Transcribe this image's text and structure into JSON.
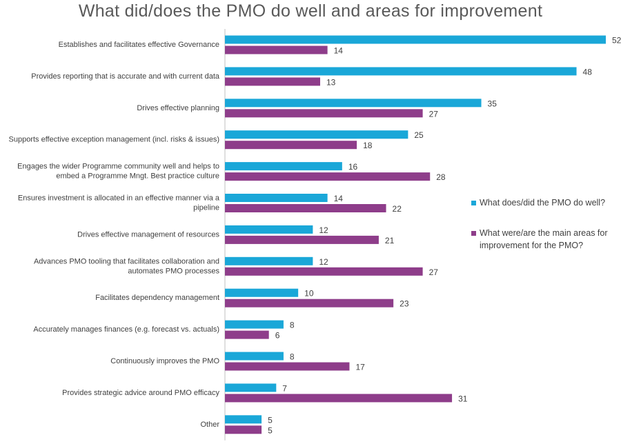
{
  "chart_data": {
    "type": "bar",
    "orientation": "horizontal",
    "title": "What did/does the PMO do well and areas for improvement",
    "categories": [
      "Establishes and facilitates effective Governance",
      "Provides reporting that is accurate and with current data",
      "Drives effective planning",
      "Supports effective exception management (incl. risks & issues)",
      "Engages the wider Programme community well and helps to embed a Programme Mngt. Best practice culture",
      "Ensures investment is allocated in an effective manner via a pipeline",
      "Drives effective management of resources",
      "Advances PMO tooling that facilitates collaboration and automates PMO processes",
      "Facilitates dependency management",
      "Accurately manages finances (e.g. forecast vs. actuals)",
      "Continuously improves the PMO",
      "Provides strategic advice around PMO efficacy",
      "Other"
    ],
    "category_lines": [
      [
        "Establishes and facilitates effective Governance"
      ],
      [
        "Provides reporting that is accurate and with current data"
      ],
      [
        "Drives effective planning"
      ],
      [
        "Supports effective exception management (incl. risks & issues)"
      ],
      [
        "Engages the wider Programme community well and helps to",
        "embed a Programme Mngt. Best practice culture"
      ],
      [
        "Ensures investment is allocated in an effective manner via a",
        "pipeline"
      ],
      [
        "Drives effective management of resources"
      ],
      [
        "Advances PMO tooling that facilitates collaboration and",
        "automates PMO processes"
      ],
      [
        "Facilitates dependency management"
      ],
      [
        "Accurately manages finances (e.g. forecast vs. actuals)"
      ],
      [
        "Continuously improves the PMO"
      ],
      [
        "Provides strategic advice around PMO efficacy"
      ],
      [
        "Other"
      ]
    ],
    "series": [
      {
        "name": "What does/did the PMO do well?",
        "color": "#1AA7D8",
        "values": [
          52,
          48,
          35,
          25,
          16,
          14,
          12,
          12,
          10,
          8,
          8,
          7,
          5
        ]
      },
      {
        "name": "What were/are the main areas for improvement for the PMO?",
        "color": "#8E3D8A",
        "values": [
          14,
          13,
          27,
          18,
          28,
          22,
          21,
          27,
          23,
          6,
          17,
          31,
          5
        ]
      }
    ],
    "legend_position": "right",
    "grid": false,
    "data_labels": true
  }
}
